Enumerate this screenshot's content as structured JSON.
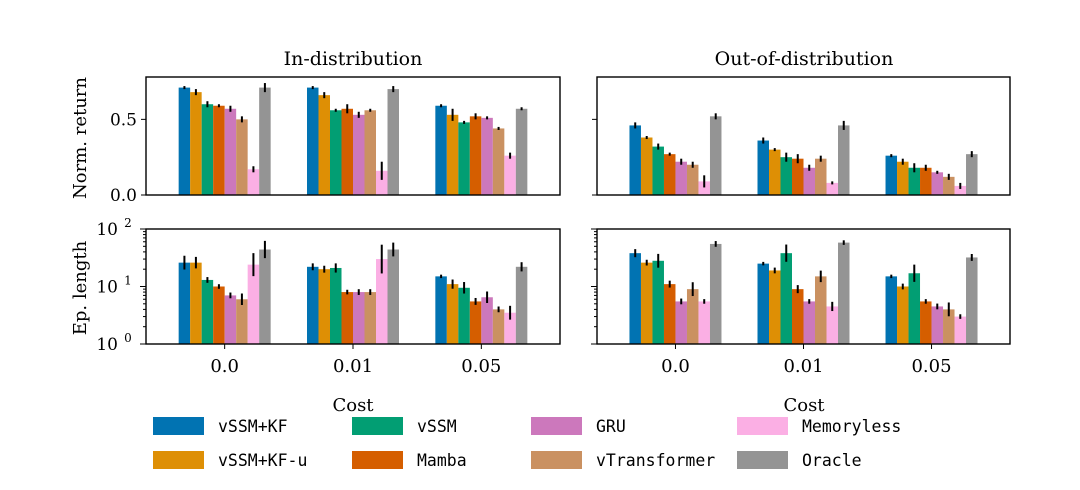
{
  "chart_data": {
    "type": "bar",
    "panel_titles": [
      "In-distribution",
      "Out-of-distribution"
    ],
    "ylabels": [
      "Norm. return",
      "Ep. length"
    ],
    "xlabel": "Cost",
    "categories": [
      "0.0",
      "0.01",
      "0.05"
    ],
    "return_axis": {
      "ylim": [
        0,
        0.78
      ],
      "ticks": [
        0.0,
        0.5
      ],
      "tick_labels": [
        "0.0",
        "0.5"
      ]
    },
    "length_axis": {
      "scale": "log",
      "ylim": [
        1,
        100
      ],
      "ticks": [
        1,
        10,
        100
      ],
      "tick_labels": [
        "10^0",
        "10^1",
        "10^2"
      ]
    },
    "series": [
      {
        "name": "vSSM+KF",
        "color": "#0173b2"
      },
      {
        "name": "vSSM+KF-u",
        "color": "#de8f05"
      },
      {
        "name": "vSSM",
        "color": "#029e73"
      },
      {
        "name": "Mamba",
        "color": "#d55e00"
      },
      {
        "name": "GRU",
        "color": "#cc78bc"
      },
      {
        "name": "vTransformer",
        "color": "#ca9161"
      },
      {
        "name": "Memoryless",
        "color": "#fbafe4"
      },
      {
        "name": "Oracle",
        "color": "#949494"
      }
    ],
    "values": {
      "in_return": [
        [
          0.71,
          0.68,
          0.6,
          0.59,
          0.57,
          0.5,
          0.17,
          0.71
        ],
        [
          0.71,
          0.66,
          0.56,
          0.57,
          0.53,
          0.56,
          0.16,
          0.7
        ],
        [
          0.59,
          0.53,
          0.48,
          0.52,
          0.51,
          0.44,
          0.26,
          0.57
        ]
      ],
      "out_return": [
        [
          0.46,
          0.38,
          0.32,
          0.27,
          0.22,
          0.2,
          0.09,
          0.52
        ],
        [
          0.36,
          0.3,
          0.25,
          0.24,
          0.18,
          0.24,
          0.08,
          0.46
        ],
        [
          0.26,
          0.22,
          0.18,
          0.18,
          0.15,
          0.12,
          0.06,
          0.27
        ]
      ],
      "in_length": [
        [
          26,
          26,
          13,
          10,
          7,
          6,
          24,
          44
        ],
        [
          22,
          20,
          21,
          8,
          8,
          8,
          30,
          44
        ],
        [
          15,
          11,
          9.5,
          5.5,
          6.5,
          4,
          3.5,
          22
        ]
      ],
      "out_length": [
        [
          38,
          26,
          28,
          11,
          5.5,
          9,
          5.5,
          55
        ],
        [
          25,
          19,
          38,
          9,
          5.5,
          15,
          4.5,
          58
        ],
        [
          15,
          10,
          17,
          5.5,
          4.5,
          4,
          3,
          32
        ]
      ]
    },
    "errors": {
      "in_return": [
        [
          0.01,
          0.02,
          0.02,
          0.01,
          0.02,
          0.02,
          0.02,
          0.03
        ],
        [
          0.01,
          0.02,
          0.01,
          0.03,
          0.02,
          0.01,
          0.06,
          0.02
        ],
        [
          0.01,
          0.04,
          0.01,
          0.02,
          0.01,
          0.01,
          0.02,
          0.01
        ]
      ],
      "out_return": [
        [
          0.02,
          0.01,
          0.02,
          0.01,
          0.02,
          0.02,
          0.04,
          0.02
        ],
        [
          0.02,
          0.01,
          0.03,
          0.03,
          0.02,
          0.02,
          0.01,
          0.03
        ],
        [
          0.01,
          0.02,
          0.03,
          0.02,
          0.01,
          0.02,
          0.02,
          0.02
        ]
      ],
      "in_length": [
        [
          0.12,
          0.1,
          0.05,
          0.04,
          0.05,
          0.1,
          0.2,
          0.15
        ],
        [
          0.06,
          0.06,
          0.08,
          0.04,
          0.05,
          0.05,
          0.25,
          0.12
        ],
        [
          0.03,
          0.08,
          0.1,
          0.06,
          0.1,
          0.05,
          0.12,
          0.08
        ]
      ],
      "out_length": [
        [
          0.07,
          0.05,
          0.12,
          0.06,
          0.05,
          0.12,
          0.04,
          0.05
        ],
        [
          0.03,
          0.05,
          0.15,
          0.07,
          0.04,
          0.1,
          0.08,
          0.04
        ],
        [
          0.03,
          0.05,
          0.15,
          0.04,
          0.05,
          0.12,
          0.04,
          0.06
        ]
      ]
    },
    "legend_placement": "bottom",
    "grid": false
  }
}
